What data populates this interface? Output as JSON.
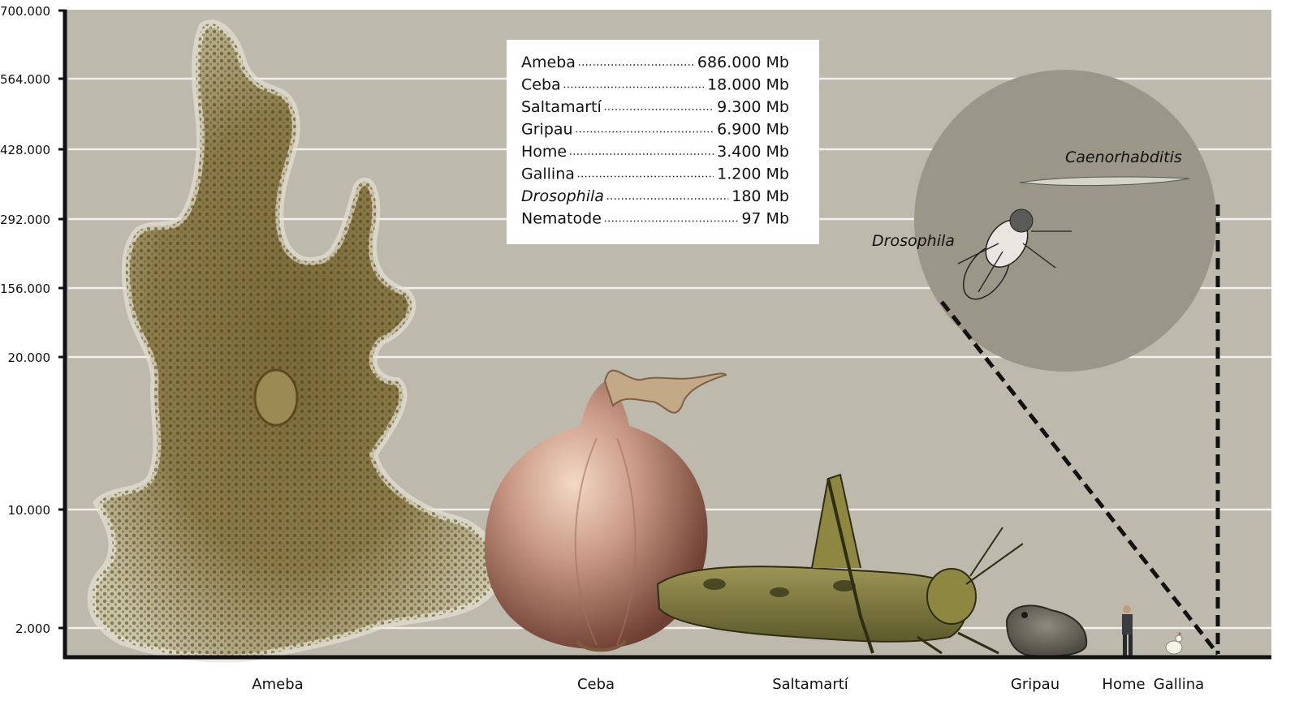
{
  "chart_data": {
    "type": "bar",
    "categories": [
      "Ameba",
      "Ceba",
      "Saltamartí",
      "Gripau",
      "Home",
      "Gallina"
    ],
    "y_tick_labels": [
      "700.000",
      "564.000",
      "428.000",
      "292.000",
      "156.000",
      "20.000",
      "10.000",
      "2.000"
    ],
    "legend": {
      "placement": "top-center",
      "entries": [
        {
          "name": "Ameba",
          "value_label": "686.000 Mb",
          "italic": false
        },
        {
          "name": "Ceba",
          "value_label": "18.000 Mb",
          "italic": false
        },
        {
          "name": "Saltamartí",
          "value_label": "9.300 Mb",
          "italic": false
        },
        {
          "name": "Gripau",
          "value_label": "6.900 Mb",
          "italic": false
        },
        {
          "name": "Home",
          "value_label": "3.400 Mb",
          "italic": false
        },
        {
          "name": "Gallina",
          "value_label": "1.200 Mb",
          "italic": false
        },
        {
          "name": "Drosophila",
          "value_label": "180 Mb",
          "italic": true
        },
        {
          "name": "Nematode",
          "value_label": "97 Mb",
          "italic": false
        }
      ]
    },
    "inset": {
      "labels": [
        "Caenorhabditis",
        "Drosophila"
      ]
    },
    "grid": true,
    "colors": {
      "background": "#bdb9ad",
      "grid": "#f2f0ea",
      "axis": "#111111"
    }
  }
}
